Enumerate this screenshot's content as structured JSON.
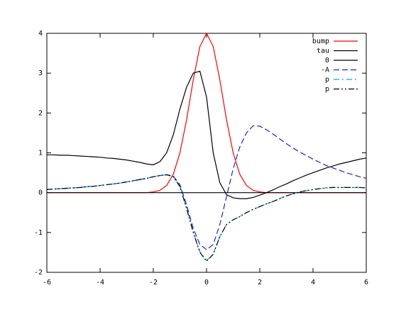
{
  "chart_data": {
    "type": "line",
    "xlim": [
      -6,
      6
    ],
    "ylim": [
      -2,
      4
    ],
    "xticks": [
      -6,
      -4,
      -2,
      0,
      2,
      4,
      6
    ],
    "yticks": [
      -2,
      -1,
      0,
      1,
      2,
      3,
      4
    ],
    "legend": "top-right",
    "x": [
      -6,
      -5.75,
      -5.5,
      -5.25,
      -5,
      -4.75,
      -4.5,
      -4.25,
      -4,
      -3.75,
      -3.5,
      -3.25,
      -3,
      -2.75,
      -2.5,
      -2.25,
      -2,
      -1.75,
      -1.5,
      -1.25,
      -1,
      -0.75,
      -0.5,
      -0.25,
      0,
      0.25,
      0.5,
      0.75,
      1,
      1.25,
      1.5,
      1.75,
      2,
      2.25,
      2.5,
      2.75,
      3,
      3.25,
      3.5,
      3.75,
      4,
      4.25,
      4.5,
      4.75,
      5,
      5.25,
      5.5,
      5.75,
      6
    ],
    "series": [
      {
        "name": "bump",
        "color": "#ff0000",
        "dash": "solid",
        "values": [
          0,
          0,
          0,
          0,
          0,
          0,
          0,
          0,
          0,
          0,
          0,
          0,
          0,
          0,
          0,
          0,
          0.02,
          0.06,
          0.18,
          0.46,
          1.0,
          1.83,
          2.83,
          3.67,
          4,
          3.67,
          2.83,
          1.83,
          1.0,
          0.46,
          0.18,
          0.06,
          0.02,
          0,
          0,
          0,
          0,
          0,
          0,
          0,
          0,
          0,
          0,
          0,
          0,
          0,
          0,
          0,
          0
        ]
      },
      {
        "name": "tau",
        "color": "#000000",
        "dash": "solid",
        "values": [
          0.95,
          0.95,
          0.94,
          0.94,
          0.93,
          0.92,
          0.91,
          0.9,
          0.89,
          0.87,
          0.86,
          0.84,
          0.82,
          0.79,
          0.76,
          0.72,
          0.7,
          0.78,
          1.0,
          1.45,
          2.1,
          2.65,
          3.0,
          3.05,
          2.4,
          1.0,
          0.25,
          -0.05,
          -0.13,
          -0.15,
          -0.15,
          -0.12,
          -0.06,
          0.0,
          0.07,
          0.15,
          0.22,
          0.3,
          0.37,
          0.44,
          0.5,
          0.56,
          0.62,
          0.67,
          0.72,
          0.76,
          0.8,
          0.84,
          0.87
        ]
      },
      {
        "name": "0",
        "color": "#000000",
        "dash": "solid",
        "values": [
          0,
          0,
          0,
          0,
          0,
          0,
          0,
          0,
          0,
          0,
          0,
          0,
          0,
          0,
          0,
          0,
          0,
          0,
          0,
          0,
          0,
          0,
          0,
          0,
          0,
          0,
          0,
          0,
          0,
          0,
          0,
          0,
          0,
          0,
          0,
          0,
          0,
          0,
          0,
          0,
          0,
          0,
          0,
          0,
          0,
          0,
          0,
          0,
          0
        ]
      },
      {
        "name": "-A",
        "color": "#2020e0",
        "dash": "dashed",
        "values": [
          0.08,
          0.09,
          0.1,
          0.11,
          0.12,
          0.13,
          0.15,
          0.16,
          0.18,
          0.2,
          0.22,
          0.24,
          0.27,
          0.3,
          0.33,
          0.36,
          0.4,
          0.43,
          0.45,
          0.42,
          0.2,
          -0.3,
          -0.9,
          -1.3,
          -1.43,
          -1.3,
          -0.8,
          -0.1,
          0.6,
          1.15,
          1.5,
          1.68,
          1.67,
          1.58,
          1.47,
          1.35,
          1.23,
          1.12,
          1.02,
          0.93,
          0.84,
          0.76,
          0.68,
          0.62,
          0.56,
          0.5,
          0.45,
          0.4,
          0.36
        ]
      },
      {
        "name": "p",
        "color": "#00b0d0",
        "dash": "dash-dot",
        "values": [
          0.08,
          0.09,
          0.1,
          0.11,
          0.12,
          0.13,
          0.15,
          0.16,
          0.18,
          0.2,
          0.22,
          0.24,
          0.27,
          0.3,
          0.33,
          0.36,
          0.4,
          0.43,
          0.45,
          0.41,
          0.16,
          -0.38,
          -0.98,
          -1.48,
          -1.7,
          -1.54,
          -1.1,
          -0.8,
          -0.68,
          -0.6,
          -0.5,
          -0.42,
          -0.35,
          -0.28,
          -0.22,
          -0.15,
          -0.08,
          -0.03,
          0.02,
          0.05,
          0.08,
          0.1,
          0.12,
          0.13,
          0.13,
          0.13,
          0.13,
          0.13,
          0.12
        ]
      },
      {
        "name": "p",
        "color": "#000000",
        "dash": "dash-dot-dot",
        "values": [
          0.08,
          0.09,
          0.1,
          0.11,
          0.12,
          0.13,
          0.15,
          0.16,
          0.18,
          0.2,
          0.22,
          0.24,
          0.27,
          0.3,
          0.33,
          0.36,
          0.4,
          0.43,
          0.45,
          0.4,
          0.15,
          -0.4,
          -1.0,
          -1.5,
          -1.72,
          -1.55,
          -1.1,
          -0.8,
          -0.68,
          -0.6,
          -0.5,
          -0.42,
          -0.35,
          -0.28,
          -0.22,
          -0.15,
          -0.08,
          -0.03,
          0.02,
          0.05,
          0.08,
          0.1,
          0.12,
          0.13,
          0.13,
          0.13,
          0.13,
          0.13,
          0.12
        ]
      }
    ]
  }
}
